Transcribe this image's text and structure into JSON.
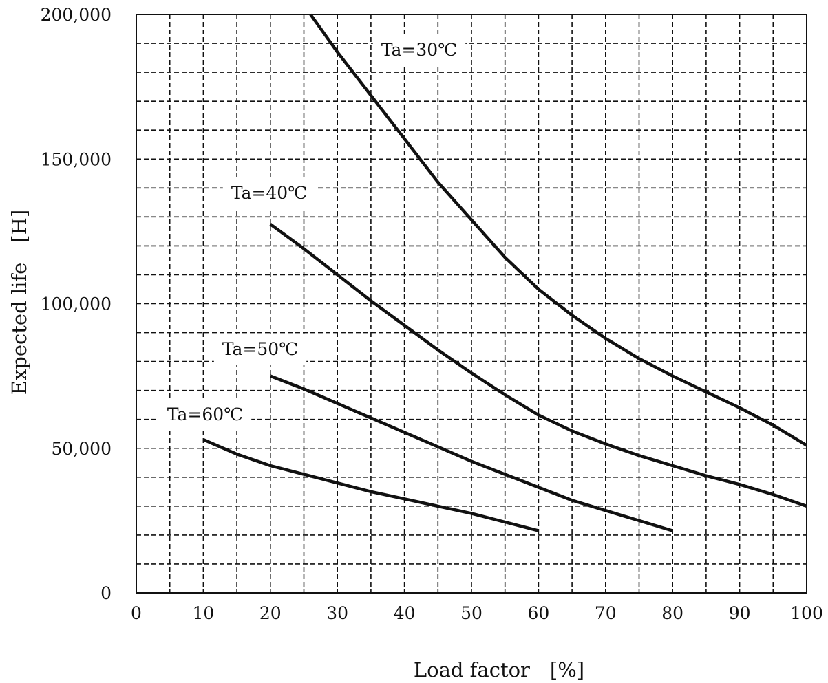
{
  "chart_data": {
    "type": "line",
    "title": "",
    "xlabel": "Load factor　[%]",
    "ylabel": "Expected life　[H]",
    "xlim": [
      0,
      100
    ],
    "ylim": [
      0,
      200000
    ],
    "x_ticks": [
      "0",
      "10",
      "20",
      "30",
      "40",
      "50",
      "60",
      "70",
      "80",
      "90",
      "100"
    ],
    "y_ticks": [
      "0",
      "50,000",
      "100,000",
      "150,000",
      "200,000"
    ],
    "x_minor_step": 5,
    "y_minor_step": 10000,
    "grid": true,
    "grid_style": "dashed",
    "series": [
      {
        "name": "Ta=30℃",
        "x": [
          26,
          30,
          35,
          40,
          45,
          50,
          55,
          60,
          65,
          70,
          75,
          80,
          85,
          90,
          95,
          100
        ],
        "y": [
          200000,
          187000,
          172000,
          157000,
          142000,
          129000,
          116000,
          105000,
          96000,
          88000,
          81000,
          75000,
          69500,
          64000,
          58000,
          51000
        ]
      },
      {
        "name": "Ta=40℃",
        "x": [
          20,
          25,
          30,
          35,
          40,
          45,
          50,
          55,
          60,
          65,
          70,
          75,
          80,
          85,
          90,
          95,
          100
        ],
        "y": [
          127500,
          119000,
          110000,
          101000,
          92500,
          84000,
          76000,
          68500,
          61500,
          56000,
          51500,
          47500,
          44000,
          40500,
          37500,
          34000,
          30000
        ]
      },
      {
        "name": "Ta=50℃",
        "x": [
          20,
          25,
          30,
          35,
          40,
          45,
          50,
          55,
          60,
          65,
          70,
          75,
          80
        ],
        "y": [
          75000,
          70500,
          65500,
          60500,
          55500,
          50500,
          45500,
          41000,
          36500,
          32000,
          28500,
          25000,
          21500
        ]
      },
      {
        "name": "Ta=60℃",
        "x": [
          10,
          15,
          20,
          25,
          30,
          35,
          40,
          45,
          50,
          55,
          60
        ],
        "y": [
          53000,
          48000,
          44000,
          41000,
          38000,
          35000,
          32500,
          30000,
          27500,
          24500,
          21500
        ]
      }
    ]
  }
}
